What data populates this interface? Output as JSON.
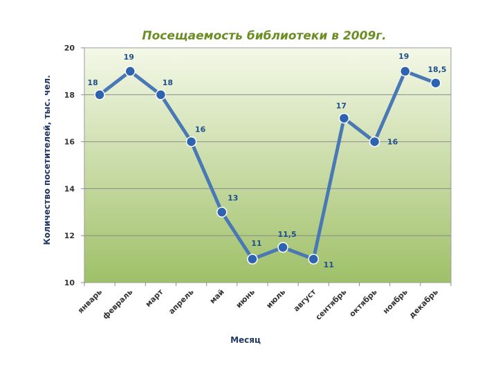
{
  "chart_data": {
    "type": "line",
    "title": "Посещаемость библиотеки в 2009г.",
    "xlabel": "Месяц",
    "ylabel": "Количество посетителей, тыс. чел.",
    "categories": [
      "январь",
      "февраль",
      "март",
      "апрель",
      "май",
      "июнь",
      "июль",
      "август",
      "сентябрь",
      "октябрь",
      "ноябрь",
      "декабрь"
    ],
    "values": [
      18,
      19,
      18,
      16,
      13,
      11,
      11.5,
      11,
      17,
      16,
      19,
      18.5
    ],
    "data_labels": [
      "18",
      "19",
      "18",
      "16",
      "13",
      "11",
      "11,5",
      "11",
      "17",
      "16",
      "19",
      "18,5"
    ],
    "ylim": [
      10,
      20
    ],
    "y_ticks": [
      "10",
      "12",
      "14",
      "16",
      "18",
      "20"
    ],
    "grid": true,
    "legend": "none",
    "colors": {
      "line": "#4a78b4",
      "marker": "#2e63b0",
      "label": "#1f4e8c",
      "title": "#6b8e23",
      "axis_title": "#1f3864",
      "plot_bg_top": "#f4f8e8",
      "plot_bg_bottom": "#9fc068"
    }
  }
}
